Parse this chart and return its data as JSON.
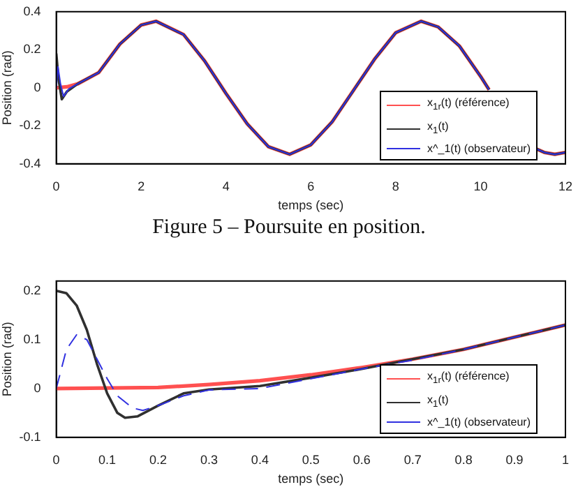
{
  "chart_data": [
    {
      "type": "line",
      "xlabel": "temps (sec)",
      "ylabel": "Position (rad)",
      "xlim": [
        0,
        12
      ],
      "xticks": [
        0,
        2,
        4,
        6,
        8,
        10,
        12
      ],
      "ylim": [
        -0.4,
        0.4
      ],
      "yticks": [
        -0.4,
        -0.2,
        0,
        0.2,
        0.4
      ],
      "grid": false,
      "legend": "bottom right",
      "annotations": [
        "Figure 5 – Poursuite en position."
      ],
      "series": [
        {
          "name": "x$_{1r}$(t) (référence)",
          "color": "#ff5050",
          "x": [
            0,
            0.25,
            0.5,
            0.75,
            1,
            1.5,
            2,
            2.35,
            3,
            3.5,
            4,
            4.5,
            5,
            5.5,
            6,
            6.5,
            7,
            7.5,
            8,
            8.6,
            9,
            9.5,
            10,
            10.2,
            10.6,
            11,
            11.3,
            11.5,
            11.75,
            12
          ],
          "values": [
            0,
            0.005,
            0.02,
            0.05,
            0.08,
            0.23,
            0.33,
            0.35,
            0.28,
            0.14,
            -0.03,
            -0.19,
            -0.31,
            -0.35,
            -0.3,
            -0.18,
            -0.015,
            0.15,
            0.29,
            0.35,
            0.32,
            0.22,
            0.06,
            -0.01,
            null,
            null,
            -0.32,
            -0.34,
            -0.35,
            -0.34
          ]
        },
        {
          "name": "x$_{1}$(t)",
          "color": "#303030",
          "x": [
            0,
            0.05,
            0.13,
            0.25,
            0.5,
            0.75,
            1,
            1.5,
            2,
            2.35,
            3,
            3.5,
            4,
            4.5,
            5,
            5.5,
            6,
            6.5,
            7,
            7.5,
            8,
            8.6,
            9,
            9.5,
            10,
            10.2,
            10.6,
            11,
            11.3,
            11.5,
            11.75,
            12
          ],
          "values": [
            0.18,
            0.05,
            -0.06,
            -0.02,
            0.02,
            0.05,
            0.08,
            0.23,
            0.33,
            0.35,
            0.28,
            0.14,
            -0.03,
            -0.19,
            -0.31,
            -0.35,
            -0.3,
            -0.18,
            -0.015,
            0.15,
            0.29,
            0.35,
            0.32,
            0.22,
            0.06,
            -0.01,
            null,
            null,
            -0.32,
            -0.34,
            -0.35,
            -0.34
          ]
        },
        {
          "name": "x^_1(t) (observateur)",
          "color": "#3030e0",
          "x": [
            0,
            0.04,
            0.1,
            0.17,
            0.3,
            0.5,
            0.75,
            1,
            1.5,
            2,
            2.35,
            3,
            3.5,
            4,
            4.5,
            5,
            5.5,
            6,
            6.5,
            7,
            7.5,
            8,
            8.6,
            9,
            9.5,
            10,
            10.2,
            10.6,
            11,
            11.3,
            11.5,
            11.75,
            12
          ],
          "values": [
            0,
            0.11,
            0.02,
            -0.045,
            -0.005,
            0.02,
            0.05,
            0.08,
            0.23,
            0.33,
            0.35,
            0.28,
            0.14,
            -0.03,
            -0.19,
            -0.31,
            -0.35,
            -0.3,
            -0.18,
            -0.015,
            0.15,
            0.29,
            0.35,
            0.32,
            0.22,
            0.06,
            -0.01,
            null,
            null,
            -0.32,
            -0.34,
            -0.35,
            -0.34
          ]
        }
      ]
    },
    {
      "type": "line",
      "xlabel": "temps (sec)",
      "ylabel": "Position (rad)",
      "xlim": [
        0,
        1
      ],
      "xticks": [
        0,
        0.1,
        0.2,
        0.3,
        0.4,
        0.5,
        0.6,
        0.7,
        0.8,
        0.9,
        1
      ],
      "ylim": [
        -0.1,
        0.22
      ],
      "yticks": [
        -0.1,
        0,
        0.1,
        0.2
      ],
      "grid": false,
      "legend": "bottom right",
      "series": [
        {
          "name": "x$_{1r}$(t) (référence)",
          "color": "#ff5050",
          "x": [
            0,
            0.2,
            0.3,
            0.4,
            0.5,
            0.6,
            0.7,
            0.8,
            0.9,
            1
          ],
          "values": [
            0,
            0.002,
            0.008,
            0.016,
            0.028,
            0.043,
            0.06,
            0.08,
            0.105,
            0.13
          ]
        },
        {
          "name": "x$_{1}$(t)",
          "color": "#303030",
          "x": [
            0,
            0.02,
            0.04,
            0.06,
            0.08,
            0.1,
            0.12,
            0.135,
            0.16,
            0.2,
            0.25,
            0.3,
            0.4,
            0.5,
            0.6,
            0.7,
            0.8,
            0.9,
            1
          ],
          "values": [
            0.2,
            0.195,
            0.17,
            0.12,
            0.05,
            -0.01,
            -0.05,
            -0.06,
            -0.057,
            -0.035,
            -0.01,
            -0.002,
            0.005,
            0.022,
            0.04,
            0.06,
            0.08,
            0.105,
            0.13
          ]
        },
        {
          "name": "x^_1(t) (observateur)",
          "color": "#3030e0",
          "line_style": "dashed",
          "x": [
            0,
            0.02,
            0.04,
            0.06,
            0.08,
            0.1,
            0.12,
            0.15,
            0.17,
            0.2,
            0.25,
            0.3,
            0.4,
            0.5,
            0.6,
            0.7,
            0.8,
            0.9,
            1
          ],
          "values": [
            0,
            0.08,
            0.11,
            0.1,
            0.06,
            0.02,
            -0.015,
            -0.04,
            -0.045,
            -0.035,
            -0.015,
            -0.003,
            0,
            0.02,
            0.04,
            0.058,
            0.08,
            0.105,
            0.13
          ]
        }
      ]
    }
  ]
}
